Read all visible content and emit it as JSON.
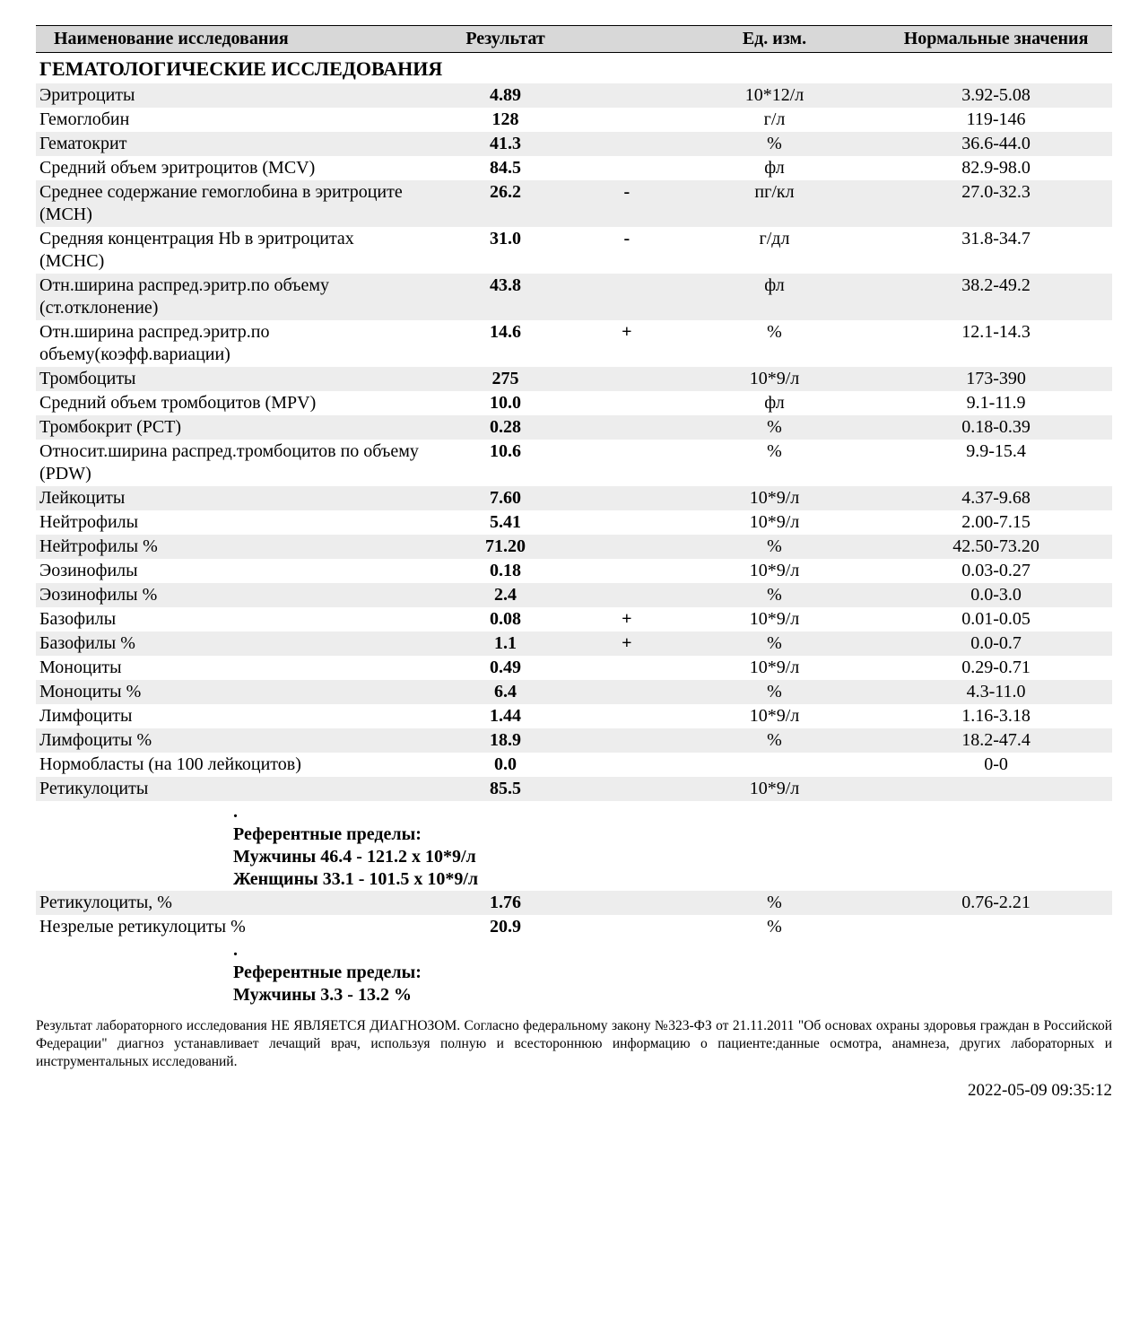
{
  "header": {
    "name": "Наименование исследования",
    "result": "Результат",
    "unit": "Ед. изм.",
    "norm": "Нормальные значения"
  },
  "section_title": "ГЕМАТОЛОГИЧЕСКИЕ ИССЛЕДОВАНИЯ",
  "rows": [
    {
      "n": "Эритроциты",
      "r": "4.89",
      "f": "",
      "u": "10*12/л",
      "m": "3.92-5.08",
      "shade": true
    },
    {
      "n": "Гемоглобин",
      "r": "128",
      "f": "",
      "u": "г/л",
      "m": "119-146",
      "shade": false
    },
    {
      "n": "Гематокрит",
      "r": "41.3",
      "f": "",
      "u": "%",
      "m": "36.6-44.0",
      "shade": true
    },
    {
      "n": "Средний объем эритроцитов (MCV)",
      "r": "84.5",
      "f": "",
      "u": "фл",
      "m": "82.9-98.0",
      "shade": false
    },
    {
      "n": "Среднее содержание гемоглобина в эритроците (MCH)",
      "r": "26.2",
      "f": "-",
      "u": "пг/кл",
      "m": "27.0-32.3",
      "shade": true
    },
    {
      "n": "Средняя концентрация Hb в эритроцитах (MCHC)",
      "r": "31.0",
      "f": "-",
      "u": "г/дл",
      "m": "31.8-34.7",
      "shade": false
    },
    {
      "n": "Отн.ширина распред.эритр.по объему (ст.отклонение)",
      "r": "43.8",
      "f": "",
      "u": "фл",
      "m": "38.2-49.2",
      "shade": true
    },
    {
      "n": "Отн.ширина распред.эритр.по объему(коэфф.вариации)",
      "r": "14.6",
      "f": "+",
      "u": "%",
      "m": "12.1-14.3",
      "shade": false
    },
    {
      "n": "Тромбоциты",
      "r": "275",
      "f": "",
      "u": "10*9/л",
      "m": "173-390",
      "shade": true
    },
    {
      "n": "Средний объем тромбоцитов (MPV)",
      "r": "10.0",
      "f": "",
      "u": "фл",
      "m": "9.1-11.9",
      "shade": false
    },
    {
      "n": "Тромбокрит (PCT)",
      "r": "0.28",
      "f": "",
      "u": "%",
      "m": "0.18-0.39",
      "shade": true
    },
    {
      "n": "Относит.ширина распред.тромбоцитов по объему (PDW)",
      "r": "10.6",
      "f": "",
      "u": "%",
      "m": "9.9-15.4",
      "shade": false
    },
    {
      "n": "Лейкоциты",
      "r": "7.60",
      "f": "",
      "u": "10*9/л",
      "m": "4.37-9.68",
      "shade": true
    },
    {
      "n": "Нейтрофилы",
      "r": "5.41",
      "f": "",
      "u": "10*9/л",
      "m": "2.00-7.15",
      "shade": false
    },
    {
      "n": "Нейтрофилы %",
      "r": "71.20",
      "f": "",
      "u": "%",
      "m": "42.50-73.20",
      "shade": true
    },
    {
      "n": "Эозинофилы",
      "r": "0.18",
      "f": "",
      "u": "10*9/л",
      "m": "0.03-0.27",
      "shade": false
    },
    {
      "n": "Эозинофилы %",
      "r": "2.4",
      "f": "",
      "u": "%",
      "m": "0.0-3.0",
      "shade": true
    },
    {
      "n": "Базофилы",
      "r": "0.08",
      "f": "+",
      "u": "10*9/л",
      "m": "0.01-0.05",
      "shade": false
    },
    {
      "n": "Базофилы %",
      "r": "1.1",
      "f": "+",
      "u": "%",
      "m": "0.0-0.7",
      "shade": true
    },
    {
      "n": "Моноциты",
      "r": "0.49",
      "f": "",
      "u": "10*9/л",
      "m": "0.29-0.71",
      "shade": false
    },
    {
      "n": "Моноциты %",
      "r": "6.4",
      "f": "",
      "u": "%",
      "m": "4.3-11.0",
      "shade": true
    },
    {
      "n": "Лимфоциты",
      "r": "1.44",
      "f": "",
      "u": "10*9/л",
      "m": "1.16-3.18",
      "shade": false
    },
    {
      "n": "Лимфоциты %",
      "r": "18.9",
      "f": "",
      "u": "%",
      "m": "18.2-47.4",
      "shade": true
    },
    {
      "n": "Нормобласты (на 100 лейкоцитов)",
      "r": "0.0",
      "f": "",
      "u": "",
      "m": "0-0",
      "shade": false
    },
    {
      "n": "Ретикулоциты",
      "r": "85.5",
      "f": "",
      "u": "10*9/л",
      "m": "",
      "shade": true
    }
  ],
  "note1": {
    "dot": ".",
    "l1": "Референтные пределы:",
    "l2": "Мужчины 46.4 - 121.2 х 10*9/л",
    "l3": "Женщины 33.1 - 101.5 х 10*9/л"
  },
  "rows2": [
    {
      "n": "Ретикулоциты, %",
      "r": "1.76",
      "f": "",
      "u": "%",
      "m": "0.76-2.21",
      "shade": true
    },
    {
      "n": "Незрелые ретикулоциты %",
      "r": "20.9",
      "f": "",
      "u": "%",
      "m": "",
      "shade": false
    }
  ],
  "note2": {
    "dot": ".",
    "l1": "Референтные пределы:",
    "l2": "Мужчины 3.3 - 13.2 %"
  },
  "disclaimer": "Результат лабораторного исследования НЕ ЯВЛЯЕТСЯ ДИАГНОЗОМ. Согласно федеральному закону №323-ФЗ от 21.11.2011 \"Об основах охраны здоровья граждан в Российской Федерации\" диагноз устанавливает лечащий врач, используя полную и всестороннюю информацию о пациенте:данные осмотра, анамнеза, других лабораторных и инструментальных исследований.",
  "timestamp": "2022-05-09 09:35:12"
}
